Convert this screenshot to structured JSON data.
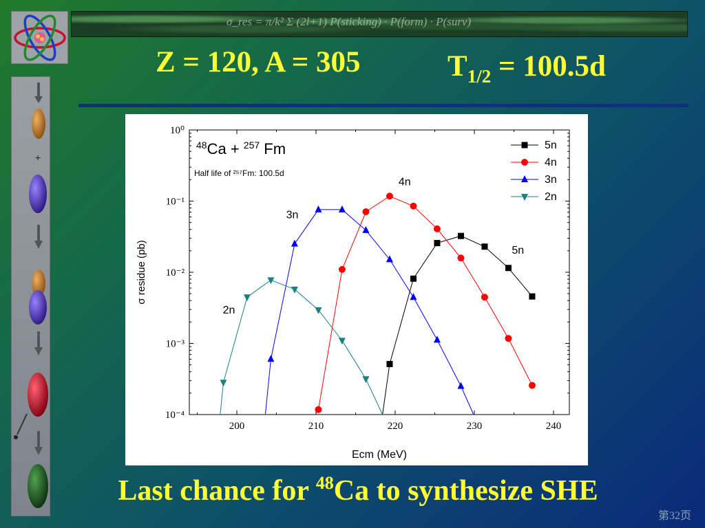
{
  "slide": {
    "banner_formula": "σ_res = π/k² Σ (2l+1) P(sticking) · P(form) · P(surv)",
    "title_left": "Z = 120, A = 305",
    "title_right_main": "T",
    "title_right_sub": "1/2",
    "title_right_tail": " = 100.5d",
    "caption_pre": "Last chance for ",
    "caption_sup": "48",
    "caption_post": "Ca to synthesize SHE",
    "page_number": "第32页",
    "sidebar_label": "neutron",
    "colors": {
      "title": "#ffff33",
      "background_start": "#1f7a28",
      "background_end": "#0a2a7a"
    }
  },
  "chart_data": {
    "type": "line",
    "log_y": true,
    "title_reaction": {
      "sup1": "48",
      "el1": "Ca + ",
      "sup2": "257",
      "el2": " Fm"
    },
    "subtitle": "Half life of ²⁵⁷Fm: 100.5d",
    "xlabel": "Ecm (MeV)",
    "ylabel": "σ residue (pb)",
    "xlim": [
      194,
      242
    ],
    "ylim_exp": [
      -4,
      0
    ],
    "x_ticks": [
      "200",
      "210",
      "220",
      "230",
      "240"
    ],
    "y_ticks": [
      "10⁰",
      "10⁻¹",
      "10⁻²",
      "10⁻³",
      "10⁻⁴"
    ],
    "legend_position": "top-right",
    "series": [
      {
        "name": "5n",
        "color": "#000000",
        "marker": "square",
        "label_x": 235.5,
        "label_y_exp": -1.74,
        "points": [
          [
            218.4,
            -4.0
          ],
          [
            219.3,
            -3.29
          ],
          [
            222.3,
            -2.09
          ],
          [
            225.3,
            -1.59
          ],
          [
            228.3,
            -1.49
          ],
          [
            231.3,
            -1.64
          ],
          [
            234.3,
            -1.94
          ],
          [
            237.3,
            -2.34
          ]
        ]
      },
      {
        "name": "4n",
        "color": "#ff0000",
        "marker": "circle",
        "label_x": 221.2,
        "label_y_exp": -0.78,
        "points": [
          [
            210.3,
            -3.93
          ],
          [
            213.3,
            -1.96
          ],
          [
            216.3,
            -1.15
          ],
          [
            219.3,
            -0.93
          ],
          [
            222.3,
            -1.07
          ],
          [
            225.3,
            -1.39
          ],
          [
            228.3,
            -1.8
          ],
          [
            231.3,
            -2.35
          ],
          [
            234.3,
            -2.93
          ],
          [
            237.3,
            -3.59
          ]
        ]
      },
      {
        "name": "3n",
        "color": "#0000ff",
        "marker": "triangle-up",
        "label_x": 207.0,
        "label_y_exp": -1.24,
        "points": [
          [
            203.6,
            -4.0
          ],
          [
            204.3,
            -3.22
          ],
          [
            207.3,
            -1.6
          ],
          [
            210.3,
            -1.12
          ],
          [
            213.3,
            -1.12
          ],
          [
            216.3,
            -1.41
          ],
          [
            219.3,
            -1.82
          ],
          [
            222.3,
            -2.35
          ],
          [
            225.3,
            -2.95
          ],
          [
            228.3,
            -3.6
          ],
          [
            229.9,
            -4.0
          ]
        ]
      },
      {
        "name": "2n",
        "color": "#1a8080",
        "marker": "triangle-down",
        "label_x": 199.0,
        "label_y_exp": -2.58,
        "points": [
          [
            197.9,
            -4.0
          ],
          [
            198.3,
            -3.55
          ],
          [
            201.3,
            -2.35
          ],
          [
            204.3,
            -2.11
          ],
          [
            207.3,
            -2.24
          ],
          [
            210.3,
            -2.53
          ],
          [
            213.3,
            -2.96
          ],
          [
            216.3,
            -3.5
          ],
          [
            218.4,
            -4.0
          ]
        ]
      }
    ]
  }
}
